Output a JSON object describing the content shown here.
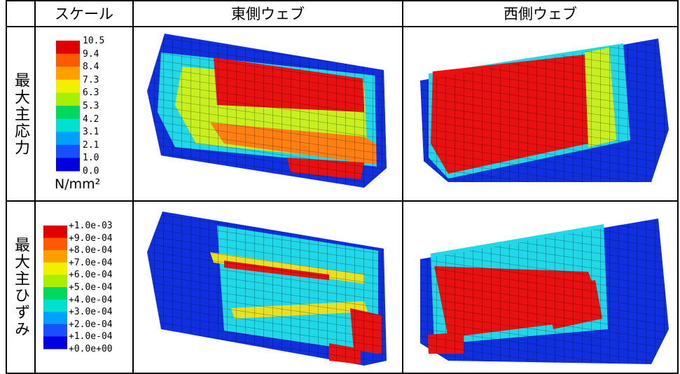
{
  "table": {
    "header": {
      "scale": "スケール",
      "east": "東側ウェブ",
      "west": "西側ウェブ"
    },
    "rows": [
      {
        "label": "最大主応力",
        "scale_labels": [
          "10.5",
          "9.4",
          "8.4",
          "7.3",
          "6.3",
          "5.3",
          "4.2",
          "3.1",
          "2.1",
          "1.0",
          "0.0"
        ],
        "unit": "N/mm²"
      },
      {
        "label": "最大主ひずみ",
        "scale_labels": [
          "+1.0e-03",
          "+9.0e-04",
          "+8.0e-04",
          "+7.0e-04",
          "+6.0e-04",
          "+5.0e-04",
          "+4.0e-04",
          "+3.0e-04",
          "+2.0e-04",
          "+1.0e-04",
          "+0.0e+00"
        ]
      }
    ]
  }
}
